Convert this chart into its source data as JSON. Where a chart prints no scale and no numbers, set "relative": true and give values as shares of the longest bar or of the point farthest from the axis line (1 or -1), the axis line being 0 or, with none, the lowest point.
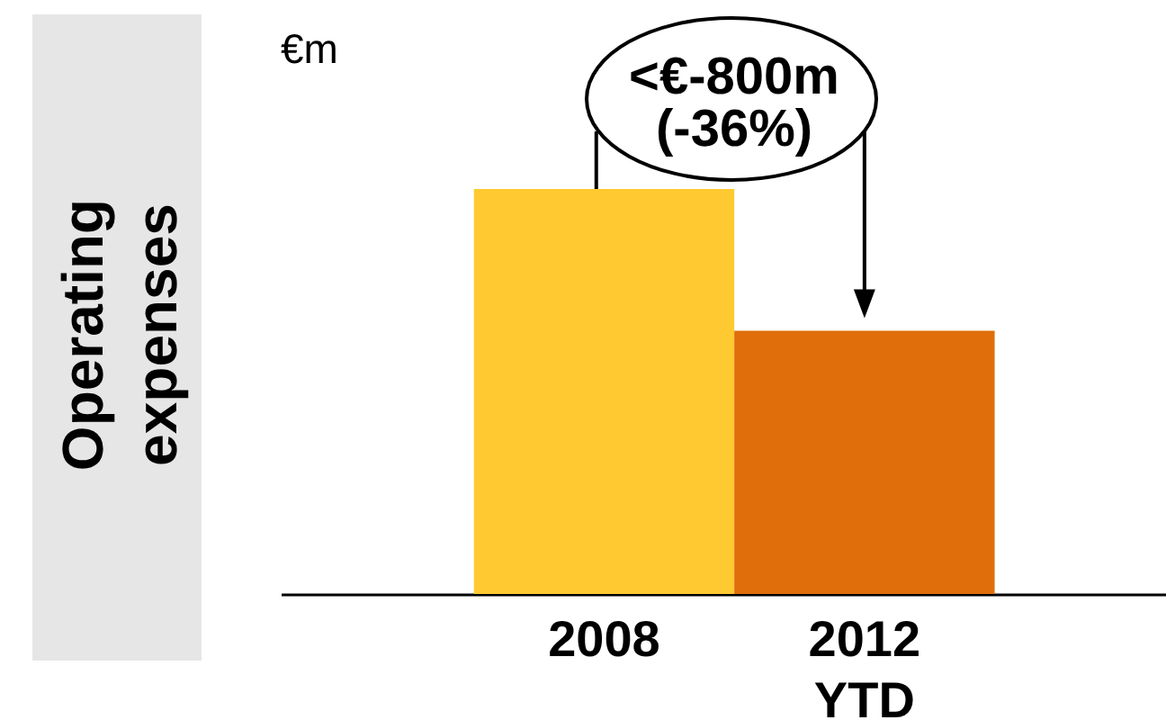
{
  "chart_data": {
    "type": "bar",
    "title": "Operating expenses",
    "ylabel": "€m",
    "categories": [
      "2008",
      "2012 YTD"
    ],
    "values": [
      1,
      0.65
    ],
    "colors": [
      "#fec931",
      "#e06e0b"
    ],
    "relative": true,
    "annotations": [
      "<€-800m (-36%)"
    ]
  }
}
